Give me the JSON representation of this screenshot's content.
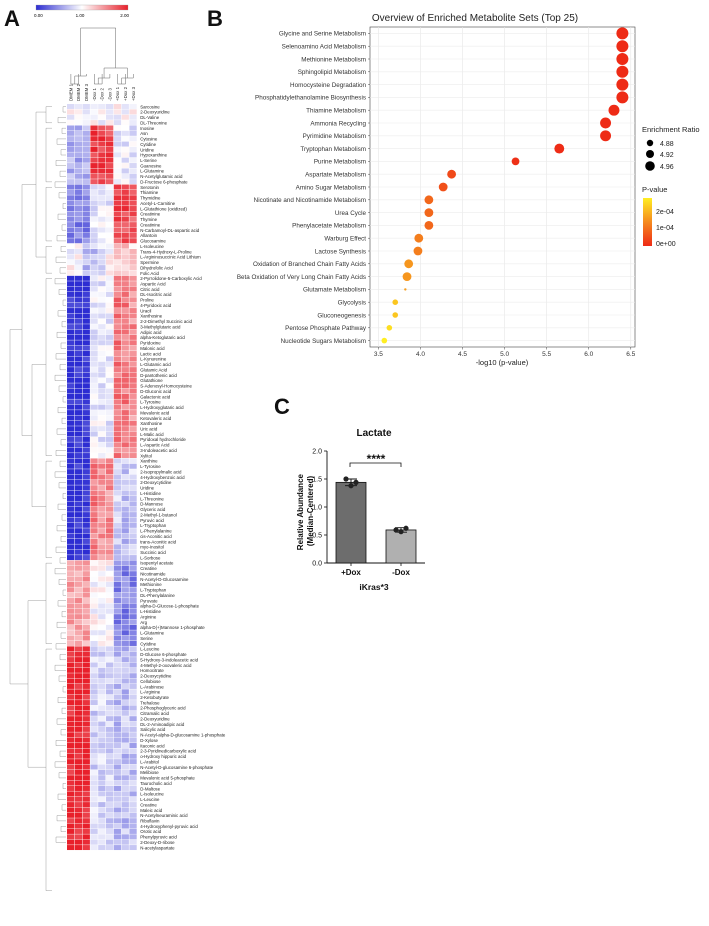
{
  "panel_labels": {
    "a": "A",
    "b": "B",
    "c": "C"
  },
  "chart_data": [
    {
      "type": "heatmap",
      "panel": "A",
      "colorbar": {
        "ticks": [
          "0.00",
          "1.00",
          "2.00"
        ],
        "range": [
          0,
          2
        ],
        "colors": [
          "#2d2dd2",
          "#ffffff",
          "#e8202b"
        ]
      },
      "columns": [
        "DMEM 1",
        "DMEM 2",
        "DMEM 3",
        "-Dox 1",
        "-Dox 2",
        "-Dox 3",
        "+Dox 1",
        "+Dox 2",
        "+Dox 3"
      ],
      "rows": [
        "Sarcosine",
        "2-Deoxyuridine",
        "DL-Valine",
        "DL-Threonine",
        "Inosine",
        "Asn",
        "Cytosine",
        "Cytidine",
        "Uridine",
        "Hypoxanthine",
        "L-Serine",
        "Guanosine",
        "L-Glutamine",
        "N-Acetylglutamic acid",
        "D-Fructose 6-phosphate",
        "Serotonin",
        "Thiamine",
        "Thymidine",
        "Acetyl-L-Carnitine",
        "L-Glutathione (oxidized)",
        "Creatinine",
        "Thymine",
        "Creatinine",
        "N-Carbamoyl-DL-aspartic acid",
        "Allantoin",
        "Glucosamine",
        "L-Isoleucine",
        "Trans-4-Hydroxy-L-Proline",
        "L-Argininosuccinic Acid Lithium",
        "Spermine",
        "Dihydrofolic Acid",
        "Folic Acid",
        "2-Pyrrolidone-5-Carboxylic Acid",
        "Aspartic Acid",
        "Citric acid",
        "DL-Isocitric acid",
        "Proline",
        "4-Pyridoxic acid",
        "Uracil",
        "Xanthosine",
        "2-2-Dimethyl Succinic acid",
        "3-Methylglutaric acid",
        "Adipic acid",
        "alpha-Ketoglutaric acid",
        "Pyridoxine",
        "Malonic acid",
        "Lactic acid",
        "L-Kynurenine",
        "L-Glutamic acid",
        "Glutamic Acid",
        "D-pantothenic acid",
        "Glutathione",
        "S-Adenosyl-Homocysteine",
        "D-Gluconic acid",
        "Galactonic acid",
        "L-Tyrosine",
        "L-Hydroxyglutaric acid",
        "Mevalonic acid",
        "Ketovaleric acid",
        "Xanthosine",
        "Uric acid",
        "L-Malic acid",
        "Pyridoxal hydrochloride",
        "L-Aspartic Acid",
        "3-Indoleacetic acid",
        "Xylitol",
        "Xanthine",
        "L-Tyrosine",
        "2-Isopropylmalic acid",
        "4-Hydroxybenzoic acid",
        "2-Deoxycytidine",
        "Uridine",
        "L-Histidine",
        "L-Threonine",
        "D-Mannose",
        "Glyceric acid",
        "2-Methyl-1-butanol",
        "Pyruvic acid",
        "L-Tryptophan",
        "L-Phenylalanine",
        "cis-Aconitic acid",
        "trans-Aconitic acid",
        "myo-Inositol",
        "Succinic acid",
        "L-Sorbose",
        "Isopentyl acetate",
        "Creatine",
        "Nicotinamide",
        "N-Acetyl-D-Glucosamine",
        "Methionine",
        "L-Tryptophan",
        "DL-Phenylalanine",
        "Pyruvate",
        "alpha-D-Glucose-1-phosphate",
        "L-Histidine",
        "Arginine",
        "Arg",
        "alpha-D(+)Mannose 1-phosphate",
        "L-Glutamine",
        "Serine",
        "Cytidine",
        "L-Leucine",
        "D-Glucose 6-phosphate",
        "5-Hydroxy-3-indoleacetic acid",
        "4-Methyl-2-oxovaleric acid",
        "Homocitrate",
        "2-Deoxycytidine",
        "Cellobiose",
        "L-Arabinose",
        "L-Arginine",
        "2-Ketobutyrate",
        "Trehalose",
        "2-Phosphoglyceric acid",
        "Citramalic acid",
        "2-Deoxyuridine",
        "DL-2-Aminoadipic acid",
        "Salicylic acid",
        "N-Acetyl-alpha-D-glucosamine 1-phosphate",
        "D-Xylose",
        "Itaconic acid",
        "2-3-Pyridinedicarboxylic acid",
        "o-Hydroxy hippuric acid",
        "L-Arabitol",
        "N-Acetyl-D-glucosamine 6-phosphate",
        "Melibiose",
        "Mevalonic acid 5-phosphate",
        "Taurocholic acid",
        "D-Maltose",
        "L-Isoleucine",
        "L-Leucine",
        "Creatine",
        "Maleic acid",
        "N-Acetylneuraminic acid",
        "Riboflavin",
        "4-Hydroxyphenyl-pyruvic acid",
        "Orotic acid",
        "Phenylpyruvic acid",
        "2-Deoxy-D-ribose",
        "N-acetylaspartate"
      ],
      "clusters": [
        {
          "from": 0,
          "to": 3,
          "pattern": [
            1.0,
            1.0,
            1.0,
            1.0,
            1.0,
            1.0,
            1.0,
            1.0,
            1.0
          ]
        },
        {
          "from": 4,
          "to": 14,
          "pattern": [
            0.6,
            0.6,
            0.6,
            1.9,
            1.9,
            1.8,
            0.9,
            0.9,
            0.9
          ]
        },
        {
          "from": 15,
          "to": 25,
          "pattern": [
            0.4,
            0.4,
            0.4,
            0.9,
            0.9,
            0.9,
            1.8,
            1.8,
            1.7
          ]
        },
        {
          "from": 26,
          "to": 31,
          "pattern": [
            1.0,
            1.0,
            0.7,
            0.7,
            0.8,
            1.0,
            1.2,
            1.3,
            1.2
          ]
        },
        {
          "from": 32,
          "to": 65,
          "pattern": [
            0.0,
            0.0,
            0.0,
            0.9,
            0.9,
            0.9,
            1.6,
            1.6,
            1.5
          ]
        },
        {
          "from": 66,
          "to": 84,
          "pattern": [
            0.0,
            0.0,
            0.0,
            1.6,
            1.5,
            1.5,
            0.8,
            0.7,
            0.8
          ]
        },
        {
          "from": 85,
          "to": 100,
          "pattern": [
            1.4,
            1.4,
            1.4,
            1.0,
            1.0,
            1.0,
            0.4,
            0.4,
            0.4
          ]
        },
        {
          "from": 101,
          "to": 146,
          "pattern": [
            2.0,
            2.0,
            2.0,
            0.8,
            0.8,
            0.8,
            0.7,
            0.7,
            0.7
          ]
        }
      ]
    },
    {
      "type": "scatter",
      "panel": "B",
      "title": "Overview of Enriched Metabolite Sets (Top 25)",
      "xlabel": "-log10 (p-value)",
      "ylabel": "",
      "xlim": [
        3.4,
        6.55
      ],
      "xticks": [
        3.5,
        4.0,
        4.5,
        5.0,
        5.5,
        6.0,
        6.5
      ],
      "legend": {
        "size_title": "Enrichment Ratio",
        "size_entries": [
          "4.88",
          "4.92",
          "4.96"
        ],
        "color_title": "P-value",
        "color_ticks": [
          "2e-04",
          "1e-04",
          "0e+00"
        ],
        "colors": [
          "#ffee22",
          "#f58a1e",
          "#ee2a16"
        ]
      },
      "categories": [
        "Glycine and Serine Metabolism",
        "Selenoamino Acid Metabolism",
        "Methionine Metabolism",
        "Sphingolipid Metabolism",
        "Homocysteine Degradation",
        "Phosphatidylethanolamine Biosynthesis",
        "Thiamine Metabolism",
        "Ammonia Recycling",
        "Pyrimidine Metabolism",
        "Tryptophan Metabolism",
        "Purine Metabolism",
        "Aspartate Metabolism",
        "Amino Sugar Metabolism",
        "Nicotinate and Nicotinamide Metabolism",
        "Urea Cycle",
        "Phenylacetate Metabolism",
        "Warburg Effect",
        "Lactose Synthesis",
        "Oxidation of Branched Chain Fatty Acids",
        "Beta Oxidation of Very Long Chain Fatty Acids",
        "Glutamate Metabolism",
        "Glycolysis",
        "Gluconeogenesis",
        "Pentose Phosphate Pathway",
        "Nucleotide Sugars Metabolism"
      ],
      "x": [
        6.4,
        6.4,
        6.4,
        6.4,
        6.4,
        6.4,
        6.3,
        6.2,
        6.2,
        5.65,
        5.13,
        4.37,
        4.27,
        4.1,
        4.1,
        4.1,
        3.98,
        3.97,
        3.86,
        3.84,
        3.82,
        3.7,
        3.7,
        3.63,
        3.57
      ],
      "enrichment_ratio": [
        4.96,
        4.96,
        4.96,
        4.96,
        4.96,
        4.96,
        4.95,
        4.95,
        4.95,
        4.94,
        4.92,
        4.93,
        4.93,
        4.93,
        4.93,
        4.93,
        4.93,
        4.93,
        4.93,
        4.93,
        4.87,
        4.9,
        4.9,
        4.9,
        4.9
      ],
      "p_value": [
        1e-06,
        1e-06,
        1e-06,
        1e-06,
        1e-06,
        1e-06,
        1e-06,
        1e-06,
        1e-06,
        3e-06,
        8e-06,
        4e-05,
        5e-05,
        8e-05,
        8e-05,
        8e-05,
        0.00011,
        0.00011,
        0.00014,
        0.00014,
        0.00015,
        0.0002,
        0.0002,
        0.00023,
        0.00026
      ]
    },
    {
      "type": "bar",
      "panel": "C",
      "title": "Lactate",
      "categories": [
        "+Dox",
        "-Dox"
      ],
      "values": [
        1.44,
        0.59
      ],
      "errors": [
        0.06,
        0.04
      ],
      "points": [
        [
          1.5,
          1.38,
          1.44
        ],
        [
          0.59,
          0.56,
          0.62
        ]
      ],
      "colors": [
        "#6d6d6d",
        "#b0b0b0"
      ],
      "xlabel": "iKras*3",
      "ylabel": "Relative Abundance\n(Median-Centered)",
      "ylim": [
        0,
        2.0
      ],
      "yticks": [
        "0.0",
        "0.5",
        "1.0",
        "1.5",
        "2.0"
      ],
      "significance": "****"
    }
  ]
}
